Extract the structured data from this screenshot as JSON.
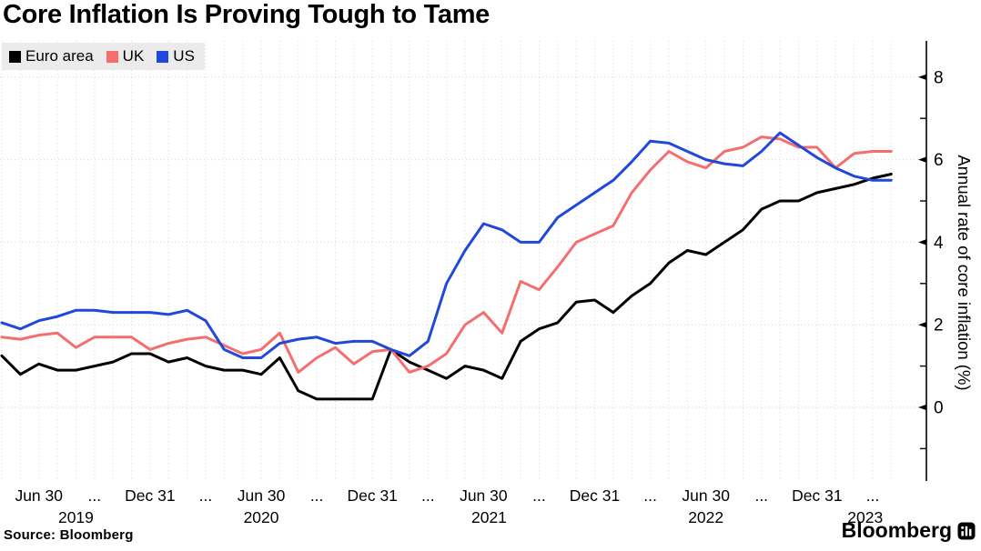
{
  "title": "Core Inflation Is Proving Tough to Tame",
  "source_note": "Source: Bloomberg",
  "logo": {
    "text": "Bloomberg",
    "icon": "bloomberg-mark-icon"
  },
  "colors": {
    "background": "#FFFFFF",
    "grid": "#D6D6D6",
    "axis": "#000000",
    "legend_bg": "#EBEBEB",
    "euro_area": "#000000",
    "uk": "#F56E6E",
    "us": "#2148D8"
  },
  "legend": {
    "items": [
      {
        "id": "euro-area",
        "label": "Euro area",
        "color": "#000000"
      },
      {
        "id": "uk",
        "label": "UK",
        "color": "#F56E6E"
      },
      {
        "id": "us",
        "label": "US",
        "color": "#2148D8"
      }
    ]
  },
  "chart_data": {
    "type": "line",
    "title": "Core Inflation Is Proving Tough to Tame",
    "x_unit": "month",
    "x_start": "2019-04",
    "x_end": "2023-04",
    "points_per_series": 49,
    "grid": "on",
    "legend_position": "top-left",
    "y_axis": {
      "label": "Annual rate of core inflation (%)",
      "side": "right",
      "major_ticks": [
        0,
        2,
        4,
        6,
        8
      ],
      "minor_ticks": [
        -1,
        1,
        3,
        5,
        7
      ],
      "ylim_drawn": [
        -1.7,
        8.9
      ]
    },
    "x_axis": {
      "ticks": [
        {
          "label": "Jun 30",
          "month_index": 2
        },
        {
          "label": "...",
          "month_index": 5
        },
        {
          "label": "Dec 31",
          "month_index": 8
        },
        {
          "label": "...",
          "month_index": 11
        },
        {
          "label": "Jun 30",
          "month_index": 14
        },
        {
          "label": "...",
          "month_index": 17
        },
        {
          "label": "Dec 31",
          "month_index": 20
        },
        {
          "label": "...",
          "month_index": 23
        },
        {
          "label": "Jun 30",
          "month_index": 26
        },
        {
          "label": "...",
          "month_index": 29
        },
        {
          "label": "Dec 31",
          "month_index": 32
        },
        {
          "label": "...",
          "month_index": 35
        },
        {
          "label": "Jun 30",
          "month_index": 38
        },
        {
          "label": "...",
          "month_index": 41
        },
        {
          "label": "Dec 31",
          "month_index": 44
        },
        {
          "label": "...",
          "month_index": 47
        }
      ],
      "year_labels": [
        {
          "label": "2019",
          "month_index": 4
        },
        {
          "label": "2020",
          "month_index": 14
        },
        {
          "label": "2021",
          "month_index": 26.3
        },
        {
          "label": "2022",
          "month_index": 38
        },
        {
          "label": "2023",
          "month_index": 46.6
        }
      ]
    },
    "series": [
      {
        "name": "Euro area",
        "id": "euro-area",
        "color": "#000000",
        "values": [
          1.25,
          0.8,
          1.05,
          0.9,
          0.9,
          1.0,
          1.1,
          1.3,
          1.3,
          1.1,
          1.2,
          1.0,
          0.9,
          0.9,
          0.8,
          1.2,
          0.4,
          0.2,
          0.2,
          0.2,
          0.2,
          1.4,
          1.1,
          0.9,
          0.7,
          1.0,
          0.9,
          0.7,
          1.6,
          1.9,
          2.05,
          2.55,
          2.6,
          2.3,
          2.7,
          3.0,
          3.5,
          3.8,
          3.7,
          4.0,
          4.3,
          4.8,
          5.0,
          5.0,
          5.2,
          5.3,
          5.4,
          5.55,
          5.65
        ]
      },
      {
        "name": "UK",
        "id": "uk",
        "color": "#F56E6E",
        "values": [
          1.7,
          1.65,
          1.75,
          1.8,
          1.45,
          1.7,
          1.7,
          1.7,
          1.4,
          1.55,
          1.65,
          1.7,
          1.5,
          1.3,
          1.4,
          1.8,
          0.85,
          1.2,
          1.45,
          1.05,
          1.35,
          1.4,
          0.85,
          1.0,
          1.3,
          2.0,
          2.3,
          1.8,
          3.05,
          2.85,
          3.4,
          4.0,
          4.2,
          4.4,
          5.2,
          5.75,
          6.2,
          5.95,
          5.8,
          6.2,
          6.3,
          6.55,
          6.5,
          6.3,
          6.3,
          5.8,
          6.15,
          6.2,
          6.2
        ]
      },
      {
        "name": "US",
        "id": "us",
        "color": "#2148D8",
        "values": [
          2.05,
          1.9,
          2.1,
          2.2,
          2.35,
          2.35,
          2.3,
          2.3,
          2.3,
          2.25,
          2.35,
          2.1,
          1.4,
          1.2,
          1.2,
          1.55,
          1.65,
          1.7,
          1.55,
          1.6,
          1.6,
          1.4,
          1.25,
          1.6,
          3.0,
          3.8,
          4.45,
          4.3,
          4.0,
          4.0,
          4.6,
          4.9,
          5.2,
          5.5,
          5.95,
          6.45,
          6.4,
          6.2,
          6.0,
          5.9,
          5.85,
          6.2,
          6.65,
          6.35,
          6.05,
          5.8,
          5.6,
          5.5,
          5.5
        ]
      }
    ]
  }
}
